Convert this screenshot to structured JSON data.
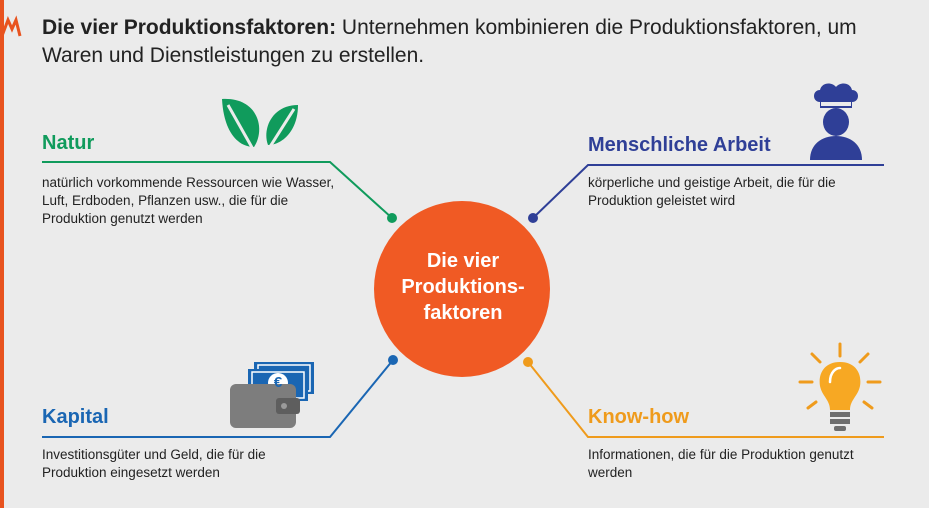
{
  "heading": {
    "bold": "Die vier Produktionsfaktoren:",
    "rest": " Unternehmen kombinieren die Produktionsfaktoren, um Waren und Dienstleistungen zu erstellen."
  },
  "center": {
    "line1": "Die vier",
    "line2": "Produktions-",
    "line3": "faktoren",
    "color": "#f05a24"
  },
  "factors": {
    "natur": {
      "title": "Natur",
      "desc": "natürlich vorkommende Ressourcen wie Wasser, Luft, Erdboden, Pflanzen usw., die für die Produktion genutzt werden",
      "color": "#109b5c",
      "icon": "leaves-icon"
    },
    "arbeit": {
      "title": "Menschliche Arbeit",
      "desc": "körperliche und geistige Arbeit, die für die Produktion geleistet wird",
      "color": "#2f3f97",
      "icon": "chef-icon"
    },
    "kapital": {
      "title": "Kapital",
      "desc": "Investitionsgüter und Geld, die für die Produktion eingesetzt werden",
      "color": "#1a66b3",
      "icon": "wallet-icon"
    },
    "knowhow": {
      "title": "Know-how",
      "desc": "Informationen, die für die Produktion genutzt werden",
      "color": "#ef9b1c",
      "icon": "lightbulb-icon"
    }
  },
  "wallet_currency": "€"
}
